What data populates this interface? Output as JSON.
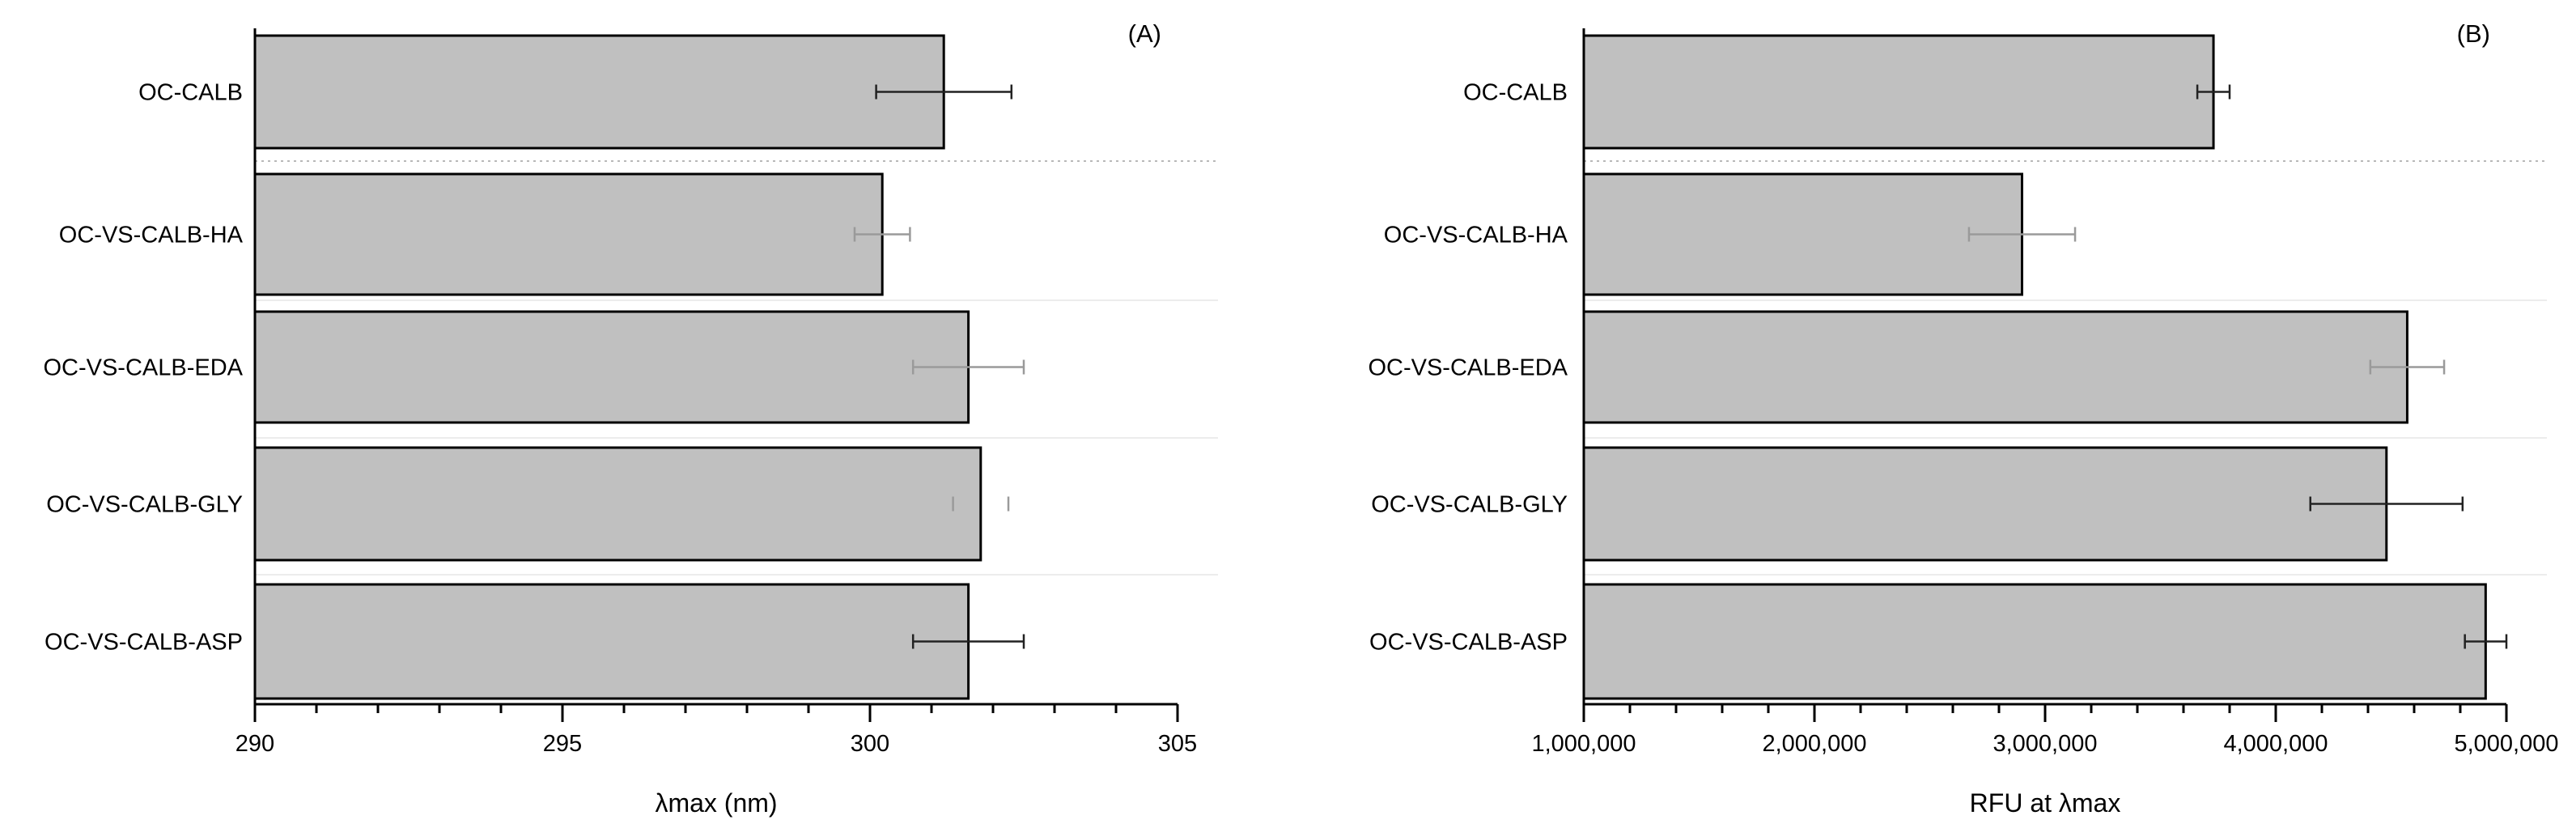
{
  "chart_data": [
    {
      "type": "bar",
      "orientation": "horizontal",
      "panel_label": "(A)",
      "categories": [
        "OC-CALB",
        "OC-VS-CALB-HA",
        "OC-VS-CALB-EDA",
        "OC-VS-CALB-GLY",
        "OC-VS-CALB-ASP"
      ],
      "values": [
        301.2,
        300.2,
        301.6,
        301.8,
        301.6
      ],
      "errors": [
        1.1,
        0.45,
        0.9,
        0.45,
        0.9
      ],
      "xlabel": "λmax (nm)",
      "xlim": [
        290,
        305
      ],
      "major_ticks": [
        290,
        295,
        300,
        305
      ],
      "tick_labels": [
        "290",
        "295",
        "300",
        "305"
      ],
      "grid": false
    },
    {
      "type": "bar",
      "orientation": "horizontal",
      "panel_label": "(B)",
      "categories": [
        "OC-CALB",
        "OC-VS-CALB-HA",
        "OC-VS-CALB-EDA",
        "OC-VS-CALB-GLY",
        "OC-VS-CALB-ASP"
      ],
      "values": [
        3730000,
        2900000,
        4570000,
        4480000,
        4910000
      ],
      "errors": [
        70000,
        230000,
        160000,
        330000,
        90000
      ],
      "xlabel": "RFU at λmax",
      "xlim": [
        1000000,
        5000000
      ],
      "major_ticks": [
        1000000,
        2000000,
        3000000,
        4000000,
        5000000
      ],
      "tick_labels": [
        "1,000,000",
        "2,000,000",
        "3,000,000",
        "4,000,000",
        "5,000,000"
      ],
      "grid": false
    }
  ],
  "colors": {
    "bar_fill": "#c0c0c0",
    "bar_stroke": "#000000",
    "error_dark": "#222222",
    "error_light": "#9a9a9a"
  }
}
